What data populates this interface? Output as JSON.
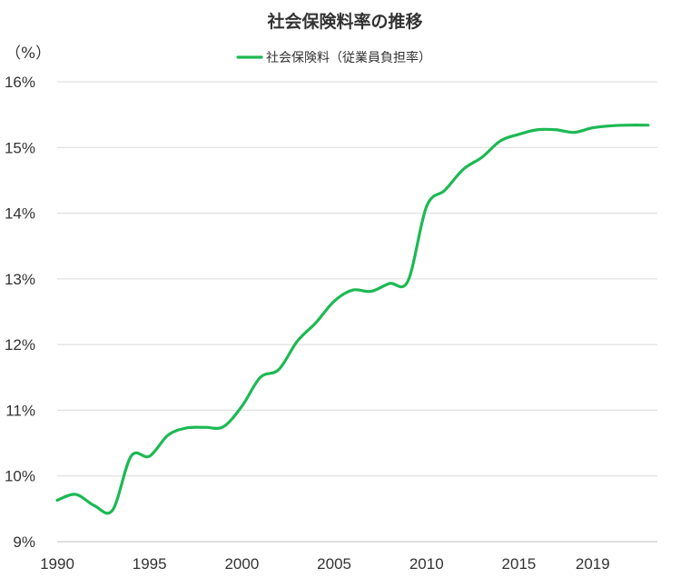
{
  "chart_data": {
    "type": "line",
    "title": "社会保険料率の推移",
    "unit_label": "（%）",
    "ylim": [
      9,
      16
    ],
    "yticks": [
      9,
      10,
      11,
      12,
      13,
      14,
      15,
      16
    ],
    "ytick_labels": [
      "9%",
      "10%",
      "11%",
      "12%",
      "13%",
      "14%",
      "15%",
      "16%"
    ],
    "xlim": [
      1990,
      2022.5
    ],
    "xticks": [
      1990,
      1995,
      2000,
      2005,
      2010,
      2015,
      2019
    ],
    "xtick_labels": [
      "1990",
      "1995",
      "2000",
      "2005",
      "2010",
      "2015",
      "2019"
    ],
    "grid": true,
    "legend_position": "top-center",
    "series": [
      {
        "name": "社会保険料（従業員負担率）",
        "color": "#1db954",
        "x": [
          1990,
          1991,
          1992,
          1993,
          1994,
          1995,
          1996,
          1997,
          1998,
          1999,
          2000,
          2001,
          2002,
          2003,
          2004,
          2005,
          2006,
          2007,
          2008,
          2009,
          2010,
          2011,
          2012,
          2013,
          2014,
          2015,
          2016,
          2017,
          2018,
          2019,
          2020,
          2021,
          2022
        ],
        "values": [
          9.63,
          9.72,
          9.55,
          9.48,
          10.3,
          10.3,
          10.62,
          10.73,
          10.74,
          10.75,
          11.06,
          11.5,
          11.62,
          12.05,
          12.33,
          12.66,
          12.83,
          12.81,
          12.93,
          12.97,
          14.1,
          14.35,
          14.67,
          14.85,
          15.1,
          15.2,
          15.27,
          15.27,
          15.23,
          15.3,
          15.33,
          15.34,
          15.34
        ]
      }
    ]
  }
}
